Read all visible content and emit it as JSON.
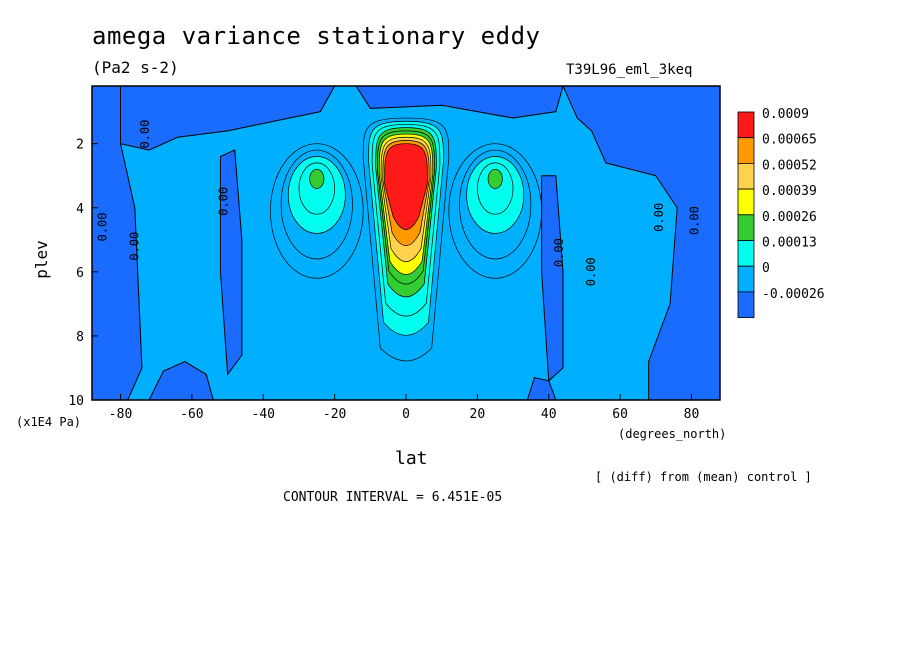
{
  "chart_data": {
    "type": "heatmap",
    "title": "amega variance stationary eddy",
    "units": "(Pa2 s-2)",
    "run_label": "T39L96_eml_3keq",
    "xlabel": "lat",
    "x_units": "(degrees_north)",
    "ylabel": "plev",
    "y_units": "(x1E4 Pa)",
    "xlim": [
      -88,
      88
    ],
    "ylim": [
      10,
      0.2
    ],
    "x_ticks": [
      -80,
      -60,
      -40,
      -20,
      0,
      20,
      40,
      60,
      80
    ],
    "y_ticks": [
      2,
      4,
      6,
      8,
      10
    ],
    "legend_levels": [
      "0.0009",
      "0.00065",
      "0.00052",
      "0.00039",
      "0.00026",
      "0.00013",
      "0",
      "-0.00026"
    ],
    "legend_colors": [
      "#ff1a1a",
      "#ff9900",
      "#ffd24d",
      "#ffff00",
      "#33cc33",
      "#00ffee",
      "#00b0ff",
      "#1a6bff"
    ],
    "contour_labels": [
      "0.00",
      "0.00",
      "0.00",
      "0.00",
      "0.00",
      "0.00",
      "0.00",
      "0.00"
    ],
    "peaks": [
      {
        "lat": 0,
        "plev": 3.5,
        "value": 0.0009
      },
      {
        "lat": -25,
        "plev": 3.0,
        "value": 0.00026
      },
      {
        "lat": 25,
        "plev": 3.0,
        "value": 0.00026
      }
    ],
    "note": "[ (diff) from (mean) control ]",
    "contour_interval": "CONTOUR INTERVAL = 6.451E-05"
  }
}
